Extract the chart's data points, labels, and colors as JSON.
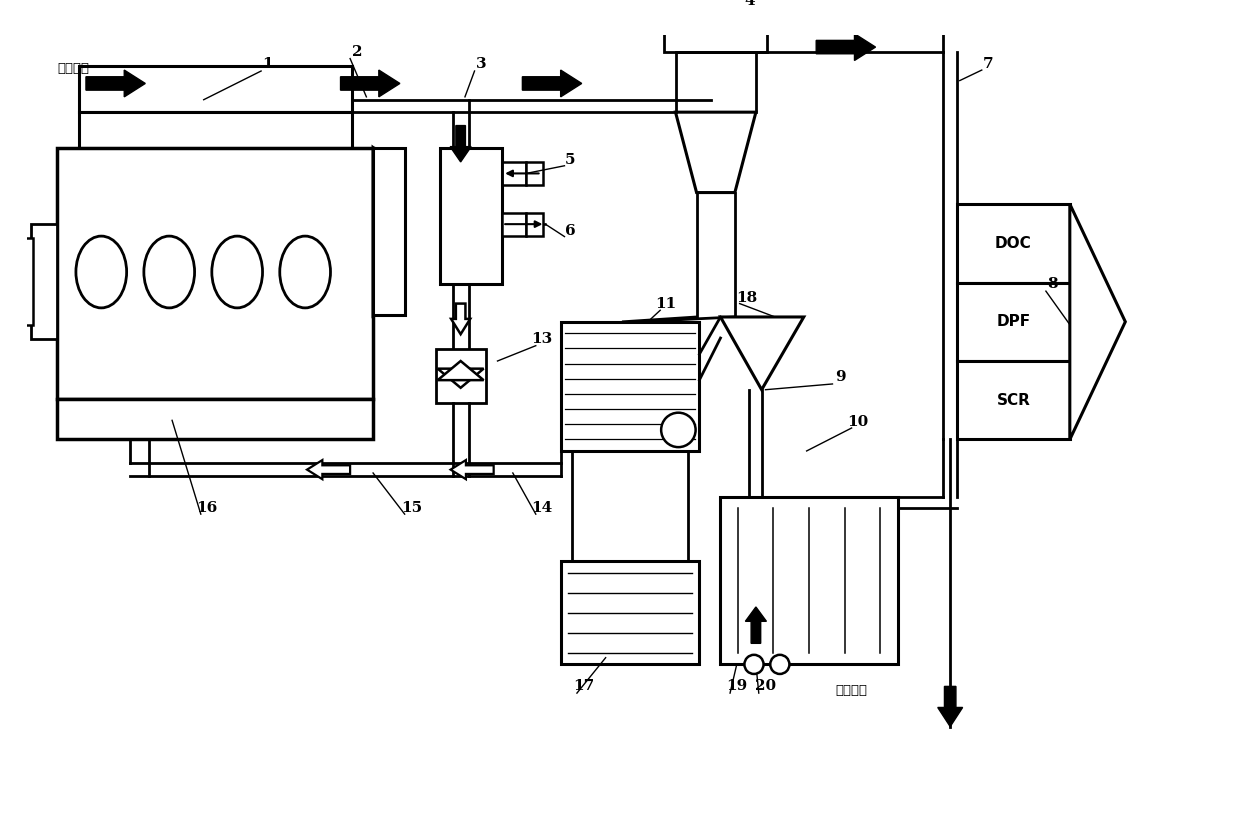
{
  "bg_color": "#ffffff",
  "line_color": "#000000",
  "chinese_hot": "高温废气",
  "chinese_cold": "低温空气",
  "doc_text": "DOC",
  "dpf_text": "DPF",
  "scr_text": "SCR",
  "lw_main": 2.0,
  "lw_thick": 2.8,
  "lw_thin": 1.2,
  "figw": 12.4,
  "figh": 8.23,
  "xmax": 12.4,
  "ymax": 8.23
}
